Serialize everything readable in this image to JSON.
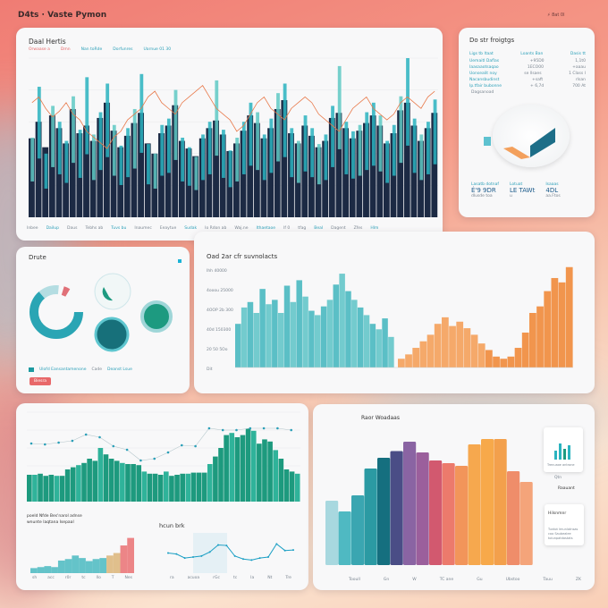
{
  "app": {
    "title": "D4ts ∙ Vaste Pymon",
    "top_icons": [
      "cursor-icon",
      "menu-icon"
    ],
    "top_text": "⚡ 8at 0l"
  },
  "main_panel": {
    "title": "Daal Hertis",
    "legend": [
      "Orwaase a",
      "Dmn",
      "Nan toRde",
      "Dorfunres",
      "Uarnue 01 30"
    ],
    "footer": [
      "Inbee",
      "Dailup",
      "Daus",
      "Tebhs ab",
      "Tuvs bu",
      "Inaumec",
      "Eeaytue",
      "Sudak",
      "Io Rdon ab",
      "Waj.ne",
      "Ithaetaoe",
      "If 0",
      "tfag",
      "Beal",
      "Dagent",
      "Zfes",
      "Hlm"
    ]
  },
  "side_panel": {
    "title": "Do str froigtgs",
    "headers": [
      "Ligs tb ltaat",
      "Loants Ban",
      "Dasis tt"
    ],
    "rows": [
      [
        "Uemaitl Daflas",
        "+95D0",
        "1,1t0"
      ],
      [
        "Iaasaaotsaqao",
        "1ECO00",
        "+aaau"
      ],
      [
        "Uonsealit noy",
        "se llsaes",
        "1 Class I"
      ],
      [
        "Nacansbudinst",
        "+saft",
        "rlsan"
      ],
      [
        "Ip.tfair bubonne",
        "+ 6,7d",
        "700 At"
      ]
    ],
    "footnote": "Dagsanoad",
    "stats": [
      {
        "label": "Lasatb dotnaf",
        "value": "É'9 9DR",
        "sub": "dlusde toa"
      },
      {
        "label": "Lotuat",
        "value": "LE TAWt",
        "sub": "u"
      },
      {
        "label": "Isaaas",
        "value": "4DL",
        "sub": "aa.Ftos"
      }
    ]
  },
  "donut_panel": {
    "title": "Drute",
    "legend": [
      "Ulofd Eansantamenone",
      "Cade",
      "Deanst Lsue"
    ],
    "button": "Biesra"
  },
  "mid_panel": {
    "title": "Oad 2ar cfr suvnolacts",
    "yticks": [
      "Ihh 40000",
      "4ooou 25000",
      "4OOP 2b 300",
      "40d 150300",
      "20 50 5Oo",
      "Dit"
    ]
  },
  "green_panel": {
    "caption1": "poeld Nfde Bes'narol adnse",
    "caption2": "wnunte laqtana Isepaal",
    "mini_title": "hcun brk",
    "mini_xticks": [
      "sh",
      "acc",
      "r0r",
      "tc",
      "Ilo",
      "T",
      "Nes"
    ],
    "line_xticks": [
      "ra",
      "acuoa",
      "rGc",
      "tc",
      "Ia",
      "Nt",
      "Tre"
    ]
  },
  "rainbow_panel": {
    "title": "Raor Woadaas",
    "xticks": [
      "Tooull",
      "Gn",
      "W",
      "TC ane",
      "Gu",
      "Ubstoo",
      "Tauu",
      "ZK"
    ],
    "card1": {
      "lines": [
        "Trenuaxe antrone"
      ],
      "label1": "Qtn",
      "label2": "Raauant"
    },
    "card2": {
      "title": "Hilsnmnr",
      "lines": [
        "Tuntot lmunlatnsas",
        "coo Saubealee",
        "tolunpatdastats"
      ]
    }
  },
  "colors": {
    "navy": "#1c2a44",
    "teal": "#2ab3bf",
    "green": "#1d9a7e",
    "orange": "#f0903a",
    "coral": "#e8686a"
  },
  "chart_data": [
    {
      "type": "bar",
      "id": "main",
      "series": [
        {
          "values": [
            62,
            75,
            55,
            80,
            70,
            58,
            85,
            66,
            72,
            60,
            78,
            90,
            68,
            55,
            64,
            74,
            82,
            58,
            50,
            66,
            72,
            88,
            60,
            54,
            48,
            62,
            70,
            76,
            65,
            52,
            58,
            68,
            80,
            74,
            62,
            70,
            85,
            92,
            66,
            58,
            72,
            64,
            55,
            60,
            78,
            82,
            70,
            62,
            68,
            74,
            80,
            72,
            58,
            66,
            84,
            90,
            72,
            60,
            70,
            82
          ]
        },
        {
          "values": [
            50,
            82,
            40,
            70,
            60,
            48,
            76,
            55,
            88,
            52,
            66,
            84,
            58,
            45,
            56,
            68,
            90,
            46,
            40,
            58,
            62,
            80,
            50,
            44,
            38,
            52,
            60,
            86,
            55,
            42,
            50,
            60,
            72,
            66,
            52,
            62,
            78,
            84,
            56,
            48,
            64,
            56,
            46,
            52,
            70,
            95,
            60,
            54,
            58,
            66,
            72,
            64,
            48,
            58,
            76,
            100,
            62,
            52,
            60,
            74
          ]
        }
      ],
      "line": [
        40,
        42,
        38,
        35,
        37,
        40,
        36,
        34,
        30,
        28,
        26,
        24,
        28,
        30,
        34,
        36,
        38,
        42,
        44,
        40,
        38,
        36,
        40,
        42,
        44,
        46,
        42,
        38,
        36,
        34,
        30,
        32,
        36,
        40,
        42,
        38,
        36,
        34,
        38,
        40,
        42,
        40,
        36,
        34,
        32,
        30,
        34,
        38,
        40,
        42,
        38,
        36,
        34,
        36,
        40,
        42,
        40,
        38,
        42,
        44
      ],
      "ylim": [
        0,
        100
      ]
    },
    {
      "type": "bar",
      "id": "mid",
      "series": [
        {
          "values": [
            40,
            55,
            60,
            50,
            72,
            58,
            62,
            50,
            75,
            60,
            80,
            65,
            52,
            48,
            56,
            62,
            76,
            86,
            70,
            62,
            55,
            48,
            40,
            35,
            45,
            28
          ]
        },
        {
          "values": [
            8,
            12,
            18,
            24,
            30,
            40,
            46,
            38,
            42,
            36,
            30,
            22,
            16,
            10,
            8,
            10,
            18,
            32,
            50,
            56,
            70,
            82,
            78,
            92
          ]
        }
      ],
      "ylim": [
        0,
        100
      ]
    },
    {
      "type": "bar",
      "id": "green",
      "values": [
        25,
        25,
        26,
        24,
        25,
        24,
        24,
        30,
        32,
        34,
        36,
        40,
        38,
        50,
        44,
        40,
        38,
        36,
        35,
        35,
        34,
        28,
        26,
        26,
        25,
        28,
        24,
        25,
        26,
        26,
        27,
        27,
        27,
        35,
        42,
        50,
        62,
        64,
        60,
        62,
        68,
        66,
        54,
        58,
        56,
        48,
        40,
        30,
        28,
        26
      ],
      "line": [
        65,
        64,
        66,
        68,
        75,
        72,
        62,
        58,
        46,
        48,
        55,
        63,
        62,
        82,
        80,
        80,
        82,
        82,
        82,
        80
      ],
      "ylim": [
        0,
        100
      ]
    },
    {
      "type": "area",
      "id": "mini-area",
      "values": [
        10,
        12,
        14,
        12,
        25,
        28,
        35,
        30,
        24,
        28,
        30,
        35,
        40,
        55,
        70
      ],
      "ylim": [
        0,
        80
      ]
    },
    {
      "type": "line",
      "id": "mini-line",
      "values": [
        40,
        38,
        30,
        32,
        34,
        42,
        56,
        55,
        34,
        28,
        26,
        30,
        32,
        58,
        45,
        46
      ],
      "ylim": [
        0,
        80
      ]
    },
    {
      "type": "bar",
      "id": "rainbow",
      "values": [
        48,
        40,
        52,
        72,
        80,
        85,
        92,
        84,
        78,
        76,
        74,
        90,
        94,
        94,
        70,
        62
      ],
      "colors": [
        "#a8d8df",
        "#4fb9c2",
        "#3aa6b1",
        "#2b9aa3",
        "#156f7f",
        "#4a4d86",
        "#8a64a3",
        "#9b5f9c",
        "#d2596f",
        "#ec7a6c",
        "#f2955a",
        "#f6a84e",
        "#f7a94a",
        "#f3a04c",
        "#ef8d6a",
        "#f4a47a"
      ],
      "ylim": [
        0,
        100
      ]
    }
  ]
}
